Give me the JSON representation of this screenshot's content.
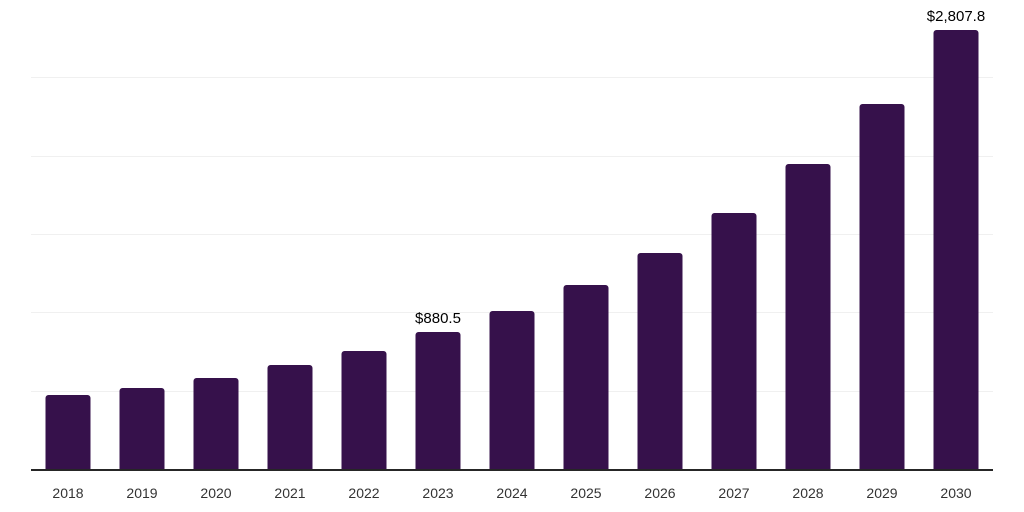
{
  "chart_data": {
    "type": "bar",
    "title": "",
    "xlabel": "",
    "ylabel": "",
    "categories": [
      "2018",
      "2019",
      "2020",
      "2021",
      "2022",
      "2023",
      "2024",
      "2025",
      "2026",
      "2027",
      "2028",
      "2029",
      "2030"
    ],
    "values": [
      476.3,
      523.4,
      587.2,
      670.2,
      759.6,
      880.5,
      1014.9,
      1180.9,
      1385.1,
      1640.4,
      1955.7,
      2336.2,
      2807.8
    ],
    "point_labels": {
      "2023": "$880.5",
      "2030": "$2,807.8"
    },
    "ylim": [
      0,
      3000
    ],
    "gridline_step": 500,
    "grid": true,
    "legend_position": "none",
    "colors": {
      "bar": "#36114B",
      "axis_line": "#262626",
      "gridline": "#f0f0f0",
      "point_label": "#000000",
      "tick_label": "#333333"
    }
  }
}
